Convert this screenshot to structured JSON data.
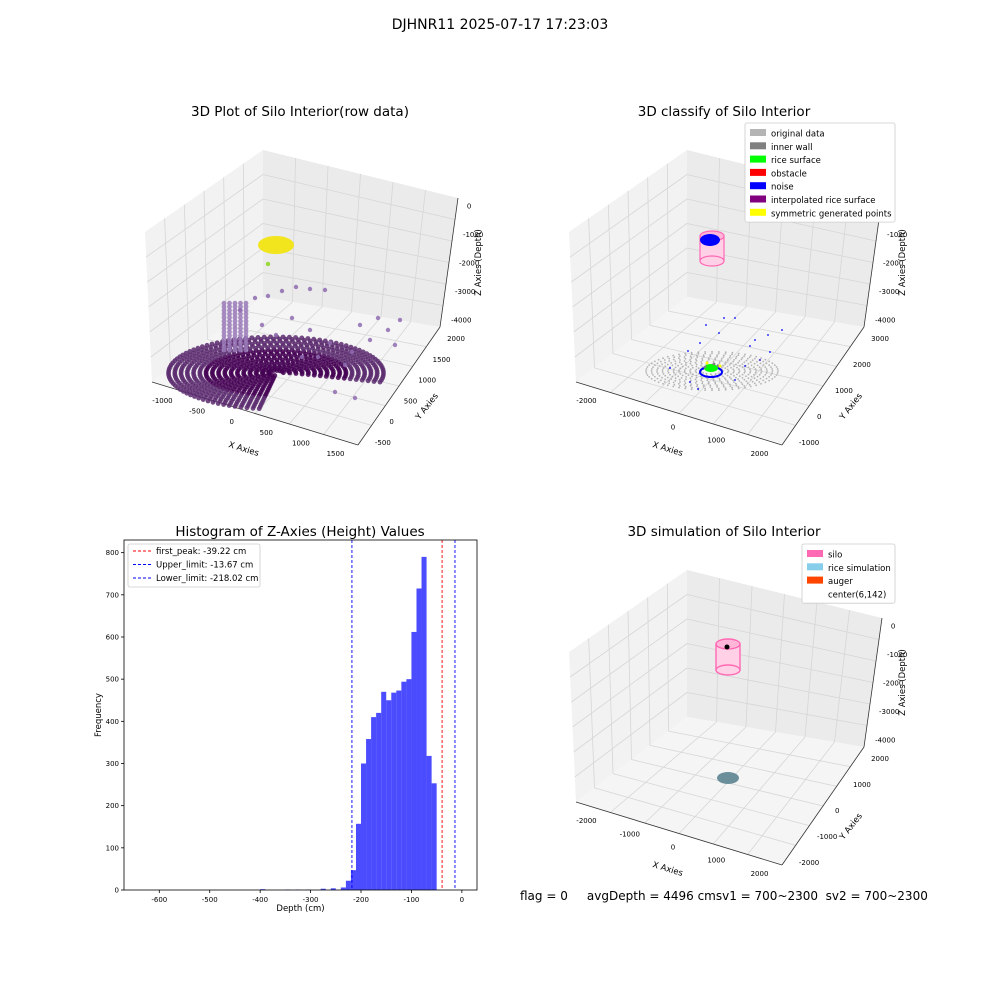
{
  "suptitle": "DJHNR11 2025-07-17 17:23:03",
  "panels": {
    "raw": {
      "title": "3D Plot of Silo Interior(row data)",
      "xlabel": "X Axies",
      "ylabel": "Y Axies",
      "zlabel": "Z Axies (Depth)",
      "xticks": [
        "-1000",
        "-500",
        "0",
        "500",
        "1000",
        "1500"
      ],
      "yticks": [
        "-500",
        "0",
        "500",
        "1000",
        "1500",
        "2000"
      ],
      "zticks": [
        "0",
        "-1000",
        "-2000",
        "-3000",
        "-4000"
      ]
    },
    "classify": {
      "title": "3D classify of Silo Interior",
      "xlabel": "X Axies",
      "ylabel": "Y Axies",
      "zlabel": "Z Axies (Depth)",
      "xticks": [
        "-2000",
        "-1000",
        "0",
        "1000",
        "2000"
      ],
      "yticks": [
        "-1000",
        "0",
        "1000",
        "2000",
        "3000"
      ],
      "zticks": [
        "0",
        "-1000",
        "-2000",
        "-3000",
        "-4000"
      ],
      "legend": [
        {
          "label": "original data",
          "color": "#b4b4b4"
        },
        {
          "label": "inner wall",
          "color": "#808080"
        },
        {
          "label": "rice surface",
          "color": "#00ff00"
        },
        {
          "label": "obstacle",
          "color": "#ff0000"
        },
        {
          "label": "noise",
          "color": "#0000ff"
        },
        {
          "label": "interpolated rice surface",
          "color": "#800080"
        },
        {
          "label": "symmetric generated points",
          "color": "#ffff00"
        }
      ]
    },
    "simulation": {
      "title": "3D simulation of Silo Interior",
      "xlabel": "X Axies",
      "ylabel": "Y Axies",
      "zlabel": "Z Axies (Depth)",
      "xticks": [
        "-2000",
        "-1000",
        "0",
        "1000",
        "2000"
      ],
      "yticks": [
        "-2000",
        "-1000",
        "0",
        "1000",
        "2000"
      ],
      "zticks": [
        "0",
        "-1000",
        "-2000",
        "-3000",
        "-4000"
      ],
      "legend": [
        {
          "label": "silo",
          "color": "#ff69b4"
        },
        {
          "label": "rice simulation",
          "color": "#87ceeb"
        },
        {
          "label": "auger",
          "color": "#ff4500"
        },
        {
          "label": "center(6,142)",
          "color": ""
        }
      ]
    }
  },
  "chart_data": {
    "type": "bar",
    "title": "Histogram of Z-Axies (Height) Values",
    "xlabel": "Depth (cm)",
    "ylabel": "Frequency",
    "xlim": [
      -670,
      30
    ],
    "ylim": [
      0,
      830
    ],
    "xticks": [
      -600,
      -500,
      -400,
      -300,
      -200,
      -100,
      0
    ],
    "yticks": [
      0,
      100,
      200,
      300,
      400,
      500,
      600,
      700,
      800
    ],
    "bar_color": "#0000ff",
    "bin_width": 10,
    "bins": [
      {
        "left": -400,
        "value": 2
      },
      {
        "left": -350,
        "value": 1
      },
      {
        "left": -330,
        "value": 1
      },
      {
        "left": -310,
        "value": 1
      },
      {
        "left": -280,
        "value": 3
      },
      {
        "left": -260,
        "value": 4
      },
      {
        "left": -240,
        "value": 6
      },
      {
        "left": -230,
        "value": 22
      },
      {
        "left": -220,
        "value": 47
      },
      {
        "left": -210,
        "value": 157
      },
      {
        "left": -200,
        "value": 300
      },
      {
        "left": -190,
        "value": 358
      },
      {
        "left": -180,
        "value": 410
      },
      {
        "left": -170,
        "value": 420
      },
      {
        "left": -160,
        "value": 470
      },
      {
        "left": -150,
        "value": 450
      },
      {
        "left": -140,
        "value": 468
      },
      {
        "left": -130,
        "value": 473
      },
      {
        "left": -120,
        "value": 494
      },
      {
        "left": -110,
        "value": 500
      },
      {
        "left": -100,
        "value": 612
      },
      {
        "left": -90,
        "value": 715
      },
      {
        "left": -80,
        "value": 790
      },
      {
        "left": -70,
        "value": 318
      },
      {
        "left": -60,
        "value": 253
      }
    ],
    "vlines": [
      {
        "label": "first_peak: -39.22 cm",
        "x": -39.22,
        "color": "#ff0000"
      },
      {
        "label": "Upper_limit: -13.67 cm",
        "x": -13.67,
        "color": "#0000ff"
      },
      {
        "label": "Lower_limit: -218.02 cm",
        "x": -218.02,
        "color": "#0000ff"
      }
    ]
  },
  "footer": {
    "text": "flag = 0     avgDepth = 4496 cmsv1 = 700~2300  sv2 = 700~2300"
  }
}
